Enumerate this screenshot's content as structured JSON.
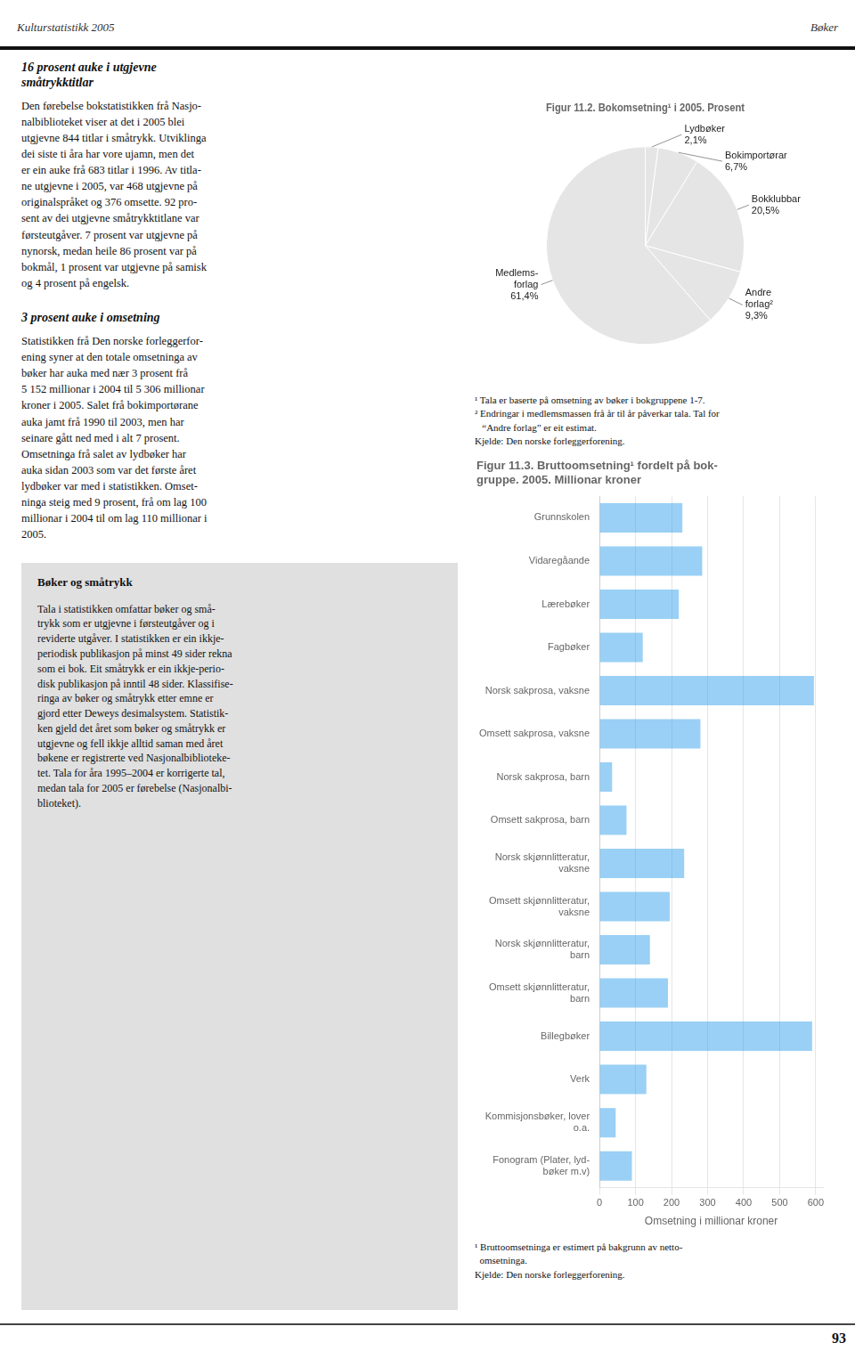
{
  "annotations": [
    "Kulturstatistikk 2005",
    "Bøker",
    "16 prosent auke i utgjevne\nsmåtrykktitlar",
    "Den førebelse bokstatistikken frå Nasjo-\nnalbiblioteket viser at det i 2005 blei\nutgjevne 844 titlar i småtrykk. Utviklinga\ndei siste ti åra har vore ujamn, men det\ner ein auke frå 683 titlar i 1996. Av titla-\nne utgjevne i 2005, var 468 utgjevne på\noriginalspråket og 376 omsette. 92 pro-\nsent av dei utgjevne småtrykktitlane var\nførsteutgåver. 7 prosent var utgjevne på\nnynorsk, medan heile 86 prosent var på\nbokmål, 1 prosent var utgjevne på samisk\nog 4 prosent på engelsk.",
    "3 prosent auke i omsetning",
    "Statistikken frå Den norske forleggerfor-\nening syner at den totale omsetninga av\nbøker har auka med nær 3 prosent frå\n5 152 millionar i 2004 til 5 306 millionar\nkroner i 2005. Salet frå bokimportørane\nauka jamt frå 1990 til 2003, men har\nseinare gått ned med i alt 7 prosent.\nOmsetninga frå salet av lydbøker har\nauka sidan 2003 som var det første året\nlydbøker var med i statistikken. Omset-\nninga steig med 9 prosent, frå om lag 100\nmillionar i 2004 til om lag 110 millionar i\n2005.",
    "Bøker og småtrykk",
    "Tala i statistikken omfattar bøker og små-\ntrykk som er utgjevne i førsteutgåver og i\nreviderte utgåver. I statistikken er ein ikkje-\nperiodisk publikasjon på minst 49 sider rekna\nsom ei bok. Eit småtrykk er ein ikkje-perio-\ndisk publikasjon på inntil 48 sider. Klassifise-\nringa av bøker og småtrykk etter emne er\ngjord etter Deweys desimalsystem. Statistik-\nken gjeld det året som bøker og småtrykk er\nutgjevne og fell ikkje alltid saman med året\nbøkene er registrerte ved Nasjonalbiblioteke-\ntet. Tala for åra 1995–2004 er korrigerte tal,\nmedan tala for 2005 er førebelse (Nasjonalbi-\nblioteket).",
    "93"
  ],
  "chart_data": [
    {
      "type": "pie",
      "title": "Figur 11.2. Bokomsetning¹ i 2005. Prosent",
      "categories": [
        "Lydbøker",
        "Bokimportørar",
        "Bokklubbar",
        "Andre\nforlag²",
        "Medlems-\nforlag"
      ],
      "values": [
        2.1,
        6.7,
        20.5,
        9.3,
        61.4
      ],
      "value_labels": [
        "2,1%",
        "6,7%",
        "20,5%",
        "9,3%",
        "61,4%"
      ],
      "data_labels": true,
      "annotations": [
        "¹ Tala er baserte på omsetning av bøker i bokgruppene 1-7.\n² Endringar i medlemsmassen frå år til år påverkar tala. Tal for\n   “Andre forlag” er eit estimat.\nKjelde: Den norske forleggerforening."
      ]
    },
    {
      "type": "bar",
      "orientation": "horizontal",
      "title": "Figur 11.3. Bruttoomsetning¹ fordelt på bok-\ngruppe. 2005. Millionar kroner",
      "categories": [
        "Grunnskolen",
        "Vidaregåande",
        "Lærebøker",
        "Fagbøker",
        "Norsk sakprosa, vaksne",
        "Omsett sakprosa, vaksne",
        "Norsk sakprosa, barn",
        "Omsett sakprosa, barn",
        "Norsk skjønnlitteratur,\nvaksne",
        "Omsett skjønnlitteratur,\nvaksne",
        "Norsk skjønnlitteratur,\nbarn",
        "Omsett skjønnlitteratur,\nbarn",
        "Billegbøker",
        "Verk",
        "Kommisjonsbøker, lover\no.a.",
        "Fonogram (Plater, lyd-\nbøker m.v)"
      ],
      "values": [
        230,
        285,
        220,
        120,
        595,
        280,
        35,
        75,
        235,
        195,
        140,
        190,
        590,
        130,
        45,
        90
      ],
      "xlabel": "Omsetning i millionar kroner",
      "xlim": [
        0,
        620
      ],
      "xticks": [
        0,
        100,
        200,
        300,
        400,
        500,
        600
      ],
      "grid": true,
      "annotations": [
        "¹ Bruttoomsetninga er estimert på bakgrunn av netto-\n  omsetninga.\nKjelde: Den norske forleggerforening."
      ]
    }
  ]
}
